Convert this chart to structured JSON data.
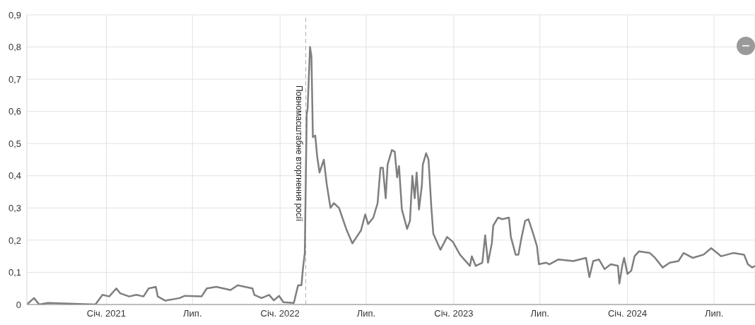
{
  "chart_data": {
    "type": "line",
    "x": [
      "2020-07-18",
      "2020-08-02",
      "2020-08-13",
      "2020-08-31",
      "2020-12-09",
      "2020-12-24",
      "2021-01-07",
      "2021-01-22",
      "2021-01-30",
      "2021-02-18",
      "2021-03-05",
      "2021-03-20",
      "2021-03-31",
      "2021-04-15",
      "2021-04-19",
      "2021-05-05",
      "2021-06-04",
      "2021-06-15",
      "2021-07-20",
      "2021-07-31",
      "2021-08-20",
      "2021-09-19",
      "2021-10-04",
      "2021-11-04",
      "2021-11-08",
      "2021-11-23",
      "2021-12-09",
      "2021-12-19",
      "2021-12-30",
      "2022-01-08",
      "2022-01-30",
      "2022-02-08",
      "2022-02-15",
      "2022-02-18",
      "2022-02-22",
      "2022-02-26",
      "2022-02-28",
      "2022-03-05",
      "2022-03-08",
      "2022-03-11",
      "2022-03-16",
      "2022-03-20",
      "2022-03-25",
      "2022-04-03",
      "2022-04-09",
      "2022-04-17",
      "2022-04-24",
      "2022-05-05",
      "2022-05-20",
      "2022-06-02",
      "2022-06-20",
      "2022-06-29",
      "2022-07-05",
      "2022-07-16",
      "2022-07-25",
      "2022-07-31",
      "2022-08-05",
      "2022-08-11",
      "2022-08-15",
      "2022-08-24",
      "2022-08-30",
      "2022-09-04",
      "2022-09-08",
      "2022-09-14",
      "2022-09-25",
      "2022-10-01",
      "2022-10-06",
      "2022-10-11",
      "2022-10-15",
      "2022-10-20",
      "2022-10-26",
      "2022-10-28",
      "2022-11-04",
      "2022-11-09",
      "2022-11-15",
      "2022-11-19",
      "2022-12-04",
      "2022-12-18",
      "2022-12-30",
      "2023-01-14",
      "2023-02-04",
      "2023-02-08",
      "2023-02-16",
      "2023-03-02",
      "2023-03-08",
      "2023-03-14",
      "2023-03-22",
      "2023-03-25",
      "2023-04-04",
      "2023-04-13",
      "2023-04-27",
      "2023-05-01",
      "2023-05-11",
      "2023-05-17",
      "2023-05-23",
      "2023-05-31",
      "2023-06-07",
      "2023-06-18",
      "2023-06-25",
      "2023-06-29",
      "2023-07-14",
      "2023-07-21",
      "2023-08-09",
      "2023-09-09",
      "2023-10-06",
      "2023-10-13",
      "2023-10-21",
      "2023-11-02",
      "2023-11-14",
      "2023-11-27",
      "2023-12-12",
      "2023-12-15",
      "2023-12-21",
      "2023-12-25",
      "2024-01-01",
      "2024-01-09",
      "2024-01-16",
      "2024-01-25",
      "2024-02-17",
      "2024-02-28",
      "2024-03-15",
      "2024-03-30",
      "2024-04-17",
      "2024-04-28",
      "2024-05-17",
      "2024-06-09",
      "2024-06-25",
      "2024-07-16",
      "2024-08-10",
      "2024-09-02",
      "2024-09-10",
      "2024-09-19",
      "2024-09-25"
    ],
    "series": [
      {
        "color": "#7f7f7f",
        "values": [
          0,
          0.02,
          0,
          0.005,
          0,
          0.03,
          0.025,
          0.05,
          0.035,
          0.025,
          0.03,
          0.025,
          0.05,
          0.055,
          0.025,
          0.012,
          0.02,
          0.027,
          0.025,
          0.05,
          0.055,
          0.045,
          0.06,
          0.05,
          0.03,
          0.02,
          0.03,
          0.013,
          0.027,
          0.007,
          0.005,
          0.06,
          0.06,
          0.11,
          0.16,
          0.59,
          0.61,
          0.8,
          0.77,
          0.52,
          0.525,
          0.46,
          0.41,
          0.45,
          0.375,
          0.3,
          0.315,
          0.3,
          0.235,
          0.19,
          0.23,
          0.28,
          0.25,
          0.27,
          0.315,
          0.425,
          0.425,
          0.33,
          0.435,
          0.48,
          0.475,
          0.395,
          0.43,
          0.295,
          0.235,
          0.26,
          0.4,
          0.33,
          0.41,
          0.295,
          0.37,
          0.435,
          0.47,
          0.45,
          0.3,
          0.22,
          0.17,
          0.21,
          0.195,
          0.155,
          0.12,
          0.15,
          0.12,
          0.13,
          0.215,
          0.13,
          0.19,
          0.245,
          0.27,
          0.265,
          0.27,
          0.21,
          0.155,
          0.155,
          0.205,
          0.26,
          0.265,
          0.215,
          0.18,
          0.125,
          0.13,
          0.125,
          0.14,
          0.135,
          0.145,
          0.085,
          0.135,
          0.14,
          0.11,
          0.125,
          0.12,
          0.065,
          0.12,
          0.145,
          0.095,
          0.105,
          0.15,
          0.165,
          0.16,
          0.145,
          0.115,
          0.13,
          0.135,
          0.16,
          0.145,
          0.155,
          0.175,
          0.15,
          0.16,
          0.155,
          0.125,
          0.115,
          0.12
        ]
      }
    ],
    "xlim": [
      "2020-07-18",
      "2024-09-25"
    ],
    "xticks": [
      {
        "value": "2021-01-01",
        "label": "Січ. 2021"
      },
      {
        "value": "2021-07-01",
        "label": "Лип."
      },
      {
        "value": "2022-01-01",
        "label": "Січ. 2022"
      },
      {
        "value": "2022-07-01",
        "label": "Лип."
      },
      {
        "value": "2023-01-01",
        "label": "Січ. 2023"
      },
      {
        "value": "2023-07-01",
        "label": "Лип."
      },
      {
        "value": "2024-01-01",
        "label": "Січ. 2024"
      },
      {
        "value": "2024-07-01",
        "label": "Лип."
      }
    ],
    "ylim": [
      0,
      0.9
    ],
    "yticks": [
      0,
      {
        "value": 0.1,
        "label": "0,1"
      },
      {
        "value": 0.2,
        "label": "0,2"
      },
      {
        "value": 0.3,
        "label": "0,3"
      },
      {
        "value": 0.4,
        "label": "0,4"
      },
      {
        "value": 0.5,
        "label": "0,5"
      },
      {
        "value": 0.6,
        "label": "0,6"
      },
      {
        "value": 0.7,
        "label": "0,7"
      },
      {
        "value": 0.8,
        "label": "0,8"
      },
      {
        "value": 0.9,
        "label": "0,9"
      }
    ],
    "ref_lines": [
      {
        "axis": "x",
        "value": "2022-02-24",
        "label": "Повномасштабне вторгнення росії",
        "color": "#b0b0b0",
        "line_style": "dashed"
      }
    ],
    "grid": true,
    "legend": false,
    "marker": "none",
    "line_style": "solid"
  }
}
